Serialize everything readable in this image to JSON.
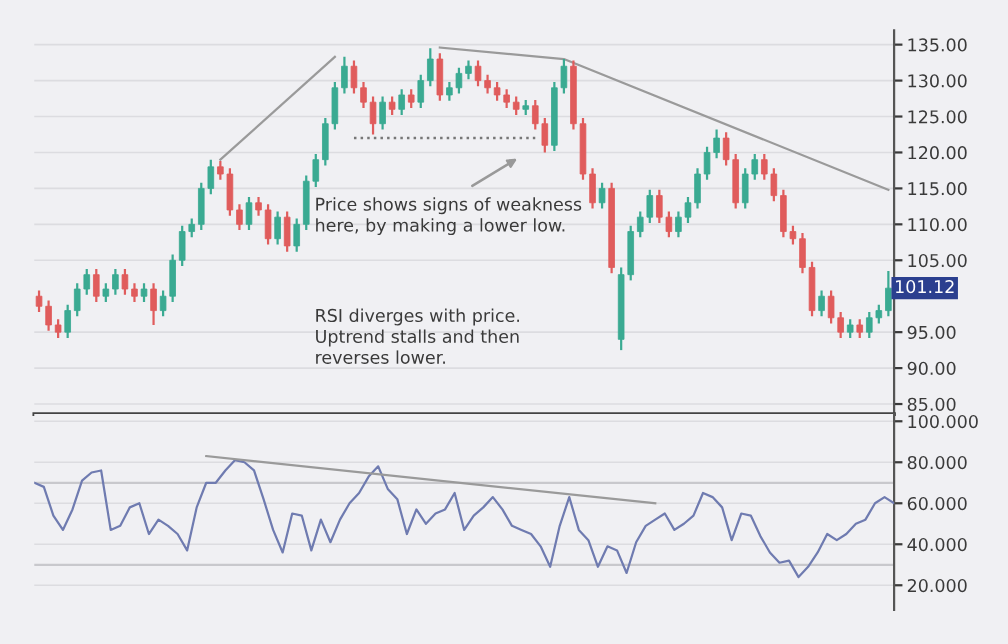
{
  "chart_data": [
    {
      "type": "candlestick",
      "categories": [
        null,
        null,
        null,
        null,
        null,
        null,
        null,
        null,
        null,
        null,
        null,
        null,
        null,
        null,
        null,
        null,
        null,
        null,
        null,
        null,
        null,
        null,
        null,
        null,
        null,
        null,
        null,
        null,
        null,
        null,
        null,
        null,
        null,
        null,
        null,
        null,
        null,
        null,
        null,
        null,
        null,
        null,
        null,
        null,
        null,
        null,
        null,
        null,
        null,
        null,
        null,
        null,
        null,
        null,
        null,
        null,
        null,
        null,
        null,
        null,
        null,
        null,
        null,
        null,
        null,
        null,
        null,
        null,
        null,
        null,
        null,
        null,
        null,
        null,
        null,
        null,
        null,
        null,
        null,
        null,
        null,
        null,
        null,
        null,
        null,
        null,
        null,
        null,
        null,
        null
      ],
      "ohlc": [
        [
          100,
          100.8,
          97.8,
          98.6
        ],
        [
          98.6,
          99.4,
          95.2,
          96
        ],
        [
          96,
          96.8,
          94.2,
          95
        ],
        [
          95,
          98.8,
          94.2,
          98
        ],
        [
          98,
          101.8,
          97.2,
          101
        ],
        [
          101,
          103.8,
          100.2,
          103
        ],
        [
          103,
          103.8,
          99.2,
          100
        ],
        [
          100,
          101.8,
          99.2,
          101
        ],
        [
          101,
          103.8,
          100.2,
          103
        ],
        [
          103,
          103.8,
          100.2,
          101
        ],
        [
          101,
          101.8,
          99.2,
          100
        ],
        [
          100,
          101.8,
          99.2,
          101
        ],
        [
          101,
          101.8,
          96,
          98
        ],
        [
          98,
          100.8,
          97.2,
          100
        ],
        [
          100,
          105.8,
          99.2,
          105
        ],
        [
          105,
          109.8,
          104.2,
          109
        ],
        [
          109,
          110.8,
          108.2,
          110
        ],
        [
          110,
          115.8,
          109.2,
          115
        ],
        [
          115,
          119,
          114.2,
          118
        ],
        [
          118,
          118.8,
          116.2,
          117
        ],
        [
          117,
          117.8,
          111.2,
          112
        ],
        [
          112,
          112.8,
          109.2,
          110
        ],
        [
          110,
          113.8,
          109.2,
          113
        ],
        [
          113,
          113.8,
          111.2,
          112
        ],
        [
          112,
          112.8,
          107.2,
          108
        ],
        [
          108,
          111.8,
          107.2,
          111
        ],
        [
          111,
          111.8,
          106.2,
          107
        ],
        [
          107,
          110.8,
          106.2,
          110
        ],
        [
          110,
          116.8,
          109.2,
          116
        ],
        [
          116,
          119.8,
          115.2,
          119
        ],
        [
          119,
          124.8,
          118.2,
          124
        ],
        [
          124,
          129.8,
          123.2,
          129
        ],
        [
          129,
          133.3,
          128.2,
          132
        ],
        [
          132,
          132.8,
          128.2,
          129
        ],
        [
          129,
          129.8,
          126.2,
          127
        ],
        [
          127,
          127.8,
          122.5,
          124
        ],
        [
          124,
          127.8,
          123.2,
          127
        ],
        [
          127,
          127.8,
          125.2,
          126
        ],
        [
          126,
          128.8,
          125.2,
          128
        ],
        [
          128,
          128.8,
          126.2,
          127
        ],
        [
          127,
          130.8,
          126.2,
          130
        ],
        [
          130,
          134.5,
          129.2,
          133
        ],
        [
          133,
          133.8,
          127.2,
          128
        ],
        [
          128,
          129.8,
          127.2,
          129
        ],
        [
          129,
          131.8,
          128.2,
          131
        ],
        [
          131,
          132.8,
          130.2,
          132
        ],
        [
          132,
          132.8,
          129.2,
          130
        ],
        [
          130,
          130.8,
          128.2,
          129
        ],
        [
          129,
          129.8,
          127.2,
          128
        ],
        [
          128,
          128.8,
          126.2,
          127
        ],
        [
          127,
          127.8,
          125.2,
          126
        ],
        [
          126,
          127.3,
          125.2,
          126.5
        ],
        [
          126.5,
          127.3,
          123.2,
          124
        ],
        [
          124,
          124.8,
          120,
          121
        ],
        [
          121,
          129.8,
          120.2,
          129
        ],
        [
          129,
          133,
          128.2,
          132
        ],
        [
          132,
          132.8,
          123.2,
          124
        ],
        [
          124,
          124.8,
          116.2,
          117
        ],
        [
          117,
          117.8,
          112.2,
          113
        ],
        [
          113,
          115.8,
          112.2,
          115
        ],
        [
          115,
          115.8,
          103.2,
          104
        ],
        [
          94,
          104,
          92.5,
          103
        ],
        [
          103,
          109.8,
          102.2,
          109
        ],
        [
          109,
          111.8,
          108.2,
          111
        ],
        [
          111,
          114.8,
          110.2,
          114
        ],
        [
          114,
          114.8,
          110.2,
          111
        ],
        [
          111,
          111.8,
          108.2,
          109
        ],
        [
          109,
          111.8,
          108.2,
          111
        ],
        [
          111,
          113.8,
          110.2,
          113
        ],
        [
          113,
          117.8,
          112.2,
          117
        ],
        [
          117,
          120.8,
          116.2,
          120
        ],
        [
          120,
          123.2,
          119.2,
          122
        ],
        [
          122,
          122.8,
          118.2,
          119
        ],
        [
          119,
          119.8,
          112.2,
          113
        ],
        [
          113,
          117.8,
          112.2,
          117
        ],
        [
          117,
          119.8,
          116.2,
          119
        ],
        [
          119,
          119.8,
          116.2,
          117
        ],
        [
          117,
          117.8,
          113.2,
          114
        ],
        [
          114,
          114.8,
          108.2,
          109
        ],
        [
          109,
          109.8,
          107.2,
          108
        ],
        [
          108,
          108.8,
          103.2,
          104
        ],
        [
          104,
          104.8,
          97.2,
          98
        ],
        [
          98,
          100.8,
          97.2,
          100
        ],
        [
          100,
          100.8,
          96.2,
          97
        ],
        [
          97,
          97.8,
          94.2,
          95
        ],
        [
          95,
          96.8,
          94.2,
          96
        ],
        [
          96,
          96.8,
          94.2,
          95
        ],
        [
          95,
          97.8,
          94.2,
          97
        ],
        [
          97,
          98.8,
          96.2,
          98
        ],
        [
          98,
          103.5,
          97.2,
          101.12
        ]
      ],
      "colors": [
        "#e05c5c",
        "#e05c5c",
        "#e05c5c",
        "#3aaa92",
        "#3aaa92",
        "#3aaa92",
        "#e05c5c",
        "#3aaa92",
        "#3aaa92",
        "#e05c5c",
        "#e05c5c",
        "#3aaa92",
        "#e05c5c",
        "#3aaa92",
        "#3aaa92",
        "#3aaa92",
        "#3aaa92",
        "#3aaa92",
        "#3aaa92",
        "#e05c5c",
        "#e05c5c",
        "#e05c5c",
        "#3aaa92",
        "#e05c5c",
        "#e05c5c",
        "#3aaa92",
        "#e05c5c",
        "#3aaa92",
        "#3aaa92",
        "#3aaa92",
        "#3aaa92",
        "#3aaa92",
        "#3aaa92",
        "#e05c5c",
        "#e05c5c",
        "#e05c5c",
        "#3aaa92",
        "#e05c5c",
        "#3aaa92",
        "#e05c5c",
        "#3aaa92",
        "#3aaa92",
        "#e05c5c",
        "#3aaa92",
        "#3aaa92",
        "#3aaa92",
        "#e05c5c",
        "#e05c5c",
        "#e05c5c",
        "#e05c5c",
        "#e05c5c",
        "#3aaa92",
        "#e05c5c",
        "#e05c5c",
        "#3aaa92",
        "#3aaa92",
        "#e05c5c",
        "#e05c5c",
        "#e05c5c",
        "#3aaa92",
        "#e05c5c",
        "#3aaa92",
        "#3aaa92",
        "#3aaa92",
        "#3aaa92",
        "#e05c5c",
        "#e05c5c",
        "#3aaa92",
        "#3aaa92",
        "#3aaa92",
        "#3aaa92",
        "#3aaa92",
        "#e05c5c",
        "#e05c5c",
        "#3aaa92",
        "#3aaa92",
        "#e05c5c",
        "#e05c5c",
        "#e05c5c",
        "#e05c5c",
        "#e05c5c",
        "#e05c5c",
        "#3aaa92",
        "#e05c5c",
        "#e05c5c",
        "#3aaa92",
        "#e05c5c",
        "#3aaa92",
        "#3aaa92",
        "#3aaa92"
      ],
      "series": [
        {
          "type": "line",
          "values": [
            null,
            null,
            null,
            null,
            null,
            null,
            null,
            null,
            null,
            null,
            null,
            null,
            null,
            null,
            null,
            null,
            null,
            null,
            null,
            119,
            null,
            null,
            null,
            null,
            null,
            null,
            null,
            null,
            null,
            null,
            null,
            133.3,
            null,
            null,
            null,
            null,
            null,
            null,
            null,
            null,
            null,
            null,
            null,
            null,
            null,
            null,
            null,
            null,
            null,
            null,
            null,
            null,
            null,
            null,
            null,
            null,
            null,
            null,
            null,
            null,
            null,
            null,
            null,
            null,
            null,
            null,
            null,
            null,
            null,
            null,
            null,
            null,
            null,
            null,
            null,
            null,
            null,
            null,
            null,
            null,
            null,
            null,
            null,
            null,
            null,
            null,
            null,
            null,
            null,
            null
          ],
          "color": "#9a9a9a"
        },
        {
          "type": "line",
          "values": [
            null,
            null,
            null,
            null,
            null,
            null,
            null,
            null,
            null,
            null,
            null,
            null,
            null,
            null,
            null,
            null,
            null,
            null,
            null,
            null,
            null,
            null,
            null,
            null,
            null,
            null,
            null,
            null,
            null,
            null,
            null,
            null,
            null,
            null,
            null,
            null,
            null,
            null,
            null,
            null,
            null,
            null,
            134.6,
            null,
            null,
            null,
            null,
            null,
            null,
            null,
            null,
            null,
            null,
            null,
            null,
            133,
            null,
            null,
            null,
            null,
            null,
            null,
            null,
            null,
            null,
            null,
            null,
            null,
            null,
            null,
            null,
            null,
            null,
            null,
            null,
            null,
            null,
            null,
            null,
            null,
            null,
            null,
            null,
            null,
            null,
            null,
            null,
            null,
            null,
            114.8
          ],
          "color": "#9a9a9a"
        },
        {
          "type": "line",
          "values": [
            null,
            null,
            null,
            null,
            null,
            null,
            null,
            null,
            null,
            null,
            null,
            null,
            null,
            null,
            null,
            null,
            null,
            null,
            null,
            null,
            null,
            null,
            null,
            null,
            null,
            null,
            null,
            null,
            null,
            null,
            null,
            null,
            null,
            122,
            null,
            null,
            null,
            null,
            null,
            null,
            null,
            null,
            null,
            null,
            null,
            null,
            null,
            null,
            null,
            null,
            null,
            null,
            122,
            null,
            null,
            null,
            null,
            null,
            null,
            null,
            null,
            null,
            null,
            null,
            null,
            null,
            null,
            null,
            null,
            null,
            null,
            null,
            null,
            null,
            null,
            null,
            null,
            null,
            null,
            null,
            null,
            null,
            null,
            null,
            null,
            null,
            null,
            null,
            null,
            null
          ],
          "color": "#777777",
          "line_style": "dotted"
        }
      ],
      "ylim": [
        83.6,
        137
      ],
      "yticks": [
        {
          "value": 85,
          "label": "85.00"
        },
        {
          "value": 90,
          "label": "90.00"
        },
        {
          "value": 95,
          "label": "95.00"
        },
        {
          "value": 105,
          "label": "105.00"
        },
        {
          "value": 110,
          "label": "110.00"
        },
        {
          "value": 115,
          "label": "115.00"
        },
        {
          "value": 120,
          "label": "120.00"
        },
        {
          "value": 125,
          "label": "125.00"
        },
        {
          "value": 130,
          "label": "130.00"
        },
        {
          "value": 135,
          "label": "135.00"
        }
      ],
      "tick_labels": "y",
      "grid": "y",
      "annotations": [
        "Price shows signs of weakness\nhere, by making a lower low.",
        "RSI diverges with price.\nUptrend stalls and then\nreverses lower.",
        "101.12"
      ]
    },
    {
      "type": "line",
      "series": [
        {
          "values": [
            70,
            68,
            54,
            47,
            57,
            71,
            75,
            76,
            47,
            49,
            58,
            60,
            45,
            52,
            49,
            45,
            37,
            58,
            70,
            70,
            76,
            81,
            80,
            76,
            62,
            47,
            36,
            55,
            54,
            37,
            52,
            41,
            52,
            60,
            65,
            73,
            78,
            67,
            62,
            45,
            57,
            50,
            55,
            57,
            65,
            47,
            54,
            58,
            63,
            57,
            49,
            47,
            45,
            39,
            29,
            49,
            63,
            47,
            42,
            29,
            39,
            37,
            26,
            41,
            49,
            52,
            55,
            47,
            50,
            54,
            65,
            63,
            58,
            42,
            55,
            54,
            44,
            36,
            31,
            32,
            24,
            29,
            36,
            45,
            42,
            45,
            50,
            52,
            60,
            63,
            60
          ],
          "color": "#6f7bb0"
        },
        {
          "values": [
            null,
            null,
            null,
            null,
            null,
            null,
            null,
            null,
            null,
            null,
            null,
            null,
            null,
            null,
            null,
            null,
            null,
            null,
            83,
            null,
            null,
            null,
            null,
            null,
            null,
            null,
            null,
            null,
            null,
            null,
            null,
            null,
            null,
            null,
            null,
            null,
            null,
            null,
            null,
            null,
            null,
            null,
            null,
            null,
            null,
            null,
            null,
            null,
            null,
            null,
            null,
            null,
            null,
            null,
            null,
            null,
            null,
            null,
            null,
            null,
            null,
            null,
            null,
            null,
            null,
            60,
            null,
            null,
            null,
            null,
            null,
            null,
            null,
            null,
            null,
            null,
            null,
            null,
            null,
            null,
            null,
            null,
            null,
            null,
            null,
            null,
            null,
            null,
            null,
            null,
            null
          ],
          "color": "#9a9a9a"
        }
      ],
      "categories": [
        null,
        null,
        null,
        null,
        null,
        null,
        null,
        null,
        null,
        null,
        null,
        null,
        null,
        null,
        null,
        null,
        null,
        null,
        null,
        null,
        null,
        null,
        null,
        null,
        null,
        null,
        null,
        null,
        null,
        null,
        null,
        null,
        null,
        null,
        null,
        null,
        null,
        null,
        null,
        null,
        null,
        null,
        null,
        null,
        null,
        null,
        null,
        null,
        null,
        null,
        null,
        null,
        null,
        null,
        null,
        null,
        null,
        null,
        null,
        null,
        null,
        null,
        null,
        null,
        null,
        null,
        null,
        null,
        null,
        null,
        null,
        null,
        null,
        null,
        null,
        null,
        null,
        null,
        null,
        null,
        null,
        null,
        null,
        null,
        null,
        null,
        null,
        null,
        null,
        null,
        null
      ],
      "ylim": [
        8,
        103.5
      ],
      "yticks": [
        {
          "value": 20,
          "label": "20.000"
        },
        {
          "value": 40,
          "label": "40.000"
        },
        {
          "value": 60,
          "label": "60.000"
        },
        {
          "value": 80,
          "label": "80.000"
        },
        {
          "value": 100,
          "label": "100.000"
        }
      ],
      "ref_lines": [
        {
          "axis": "y",
          "value": 70,
          "color": "#c8c8cc"
        },
        {
          "axis": "y",
          "value": 30,
          "color": "#c8c8cc"
        }
      ],
      "tick_labels": "y",
      "grid": "y"
    }
  ]
}
